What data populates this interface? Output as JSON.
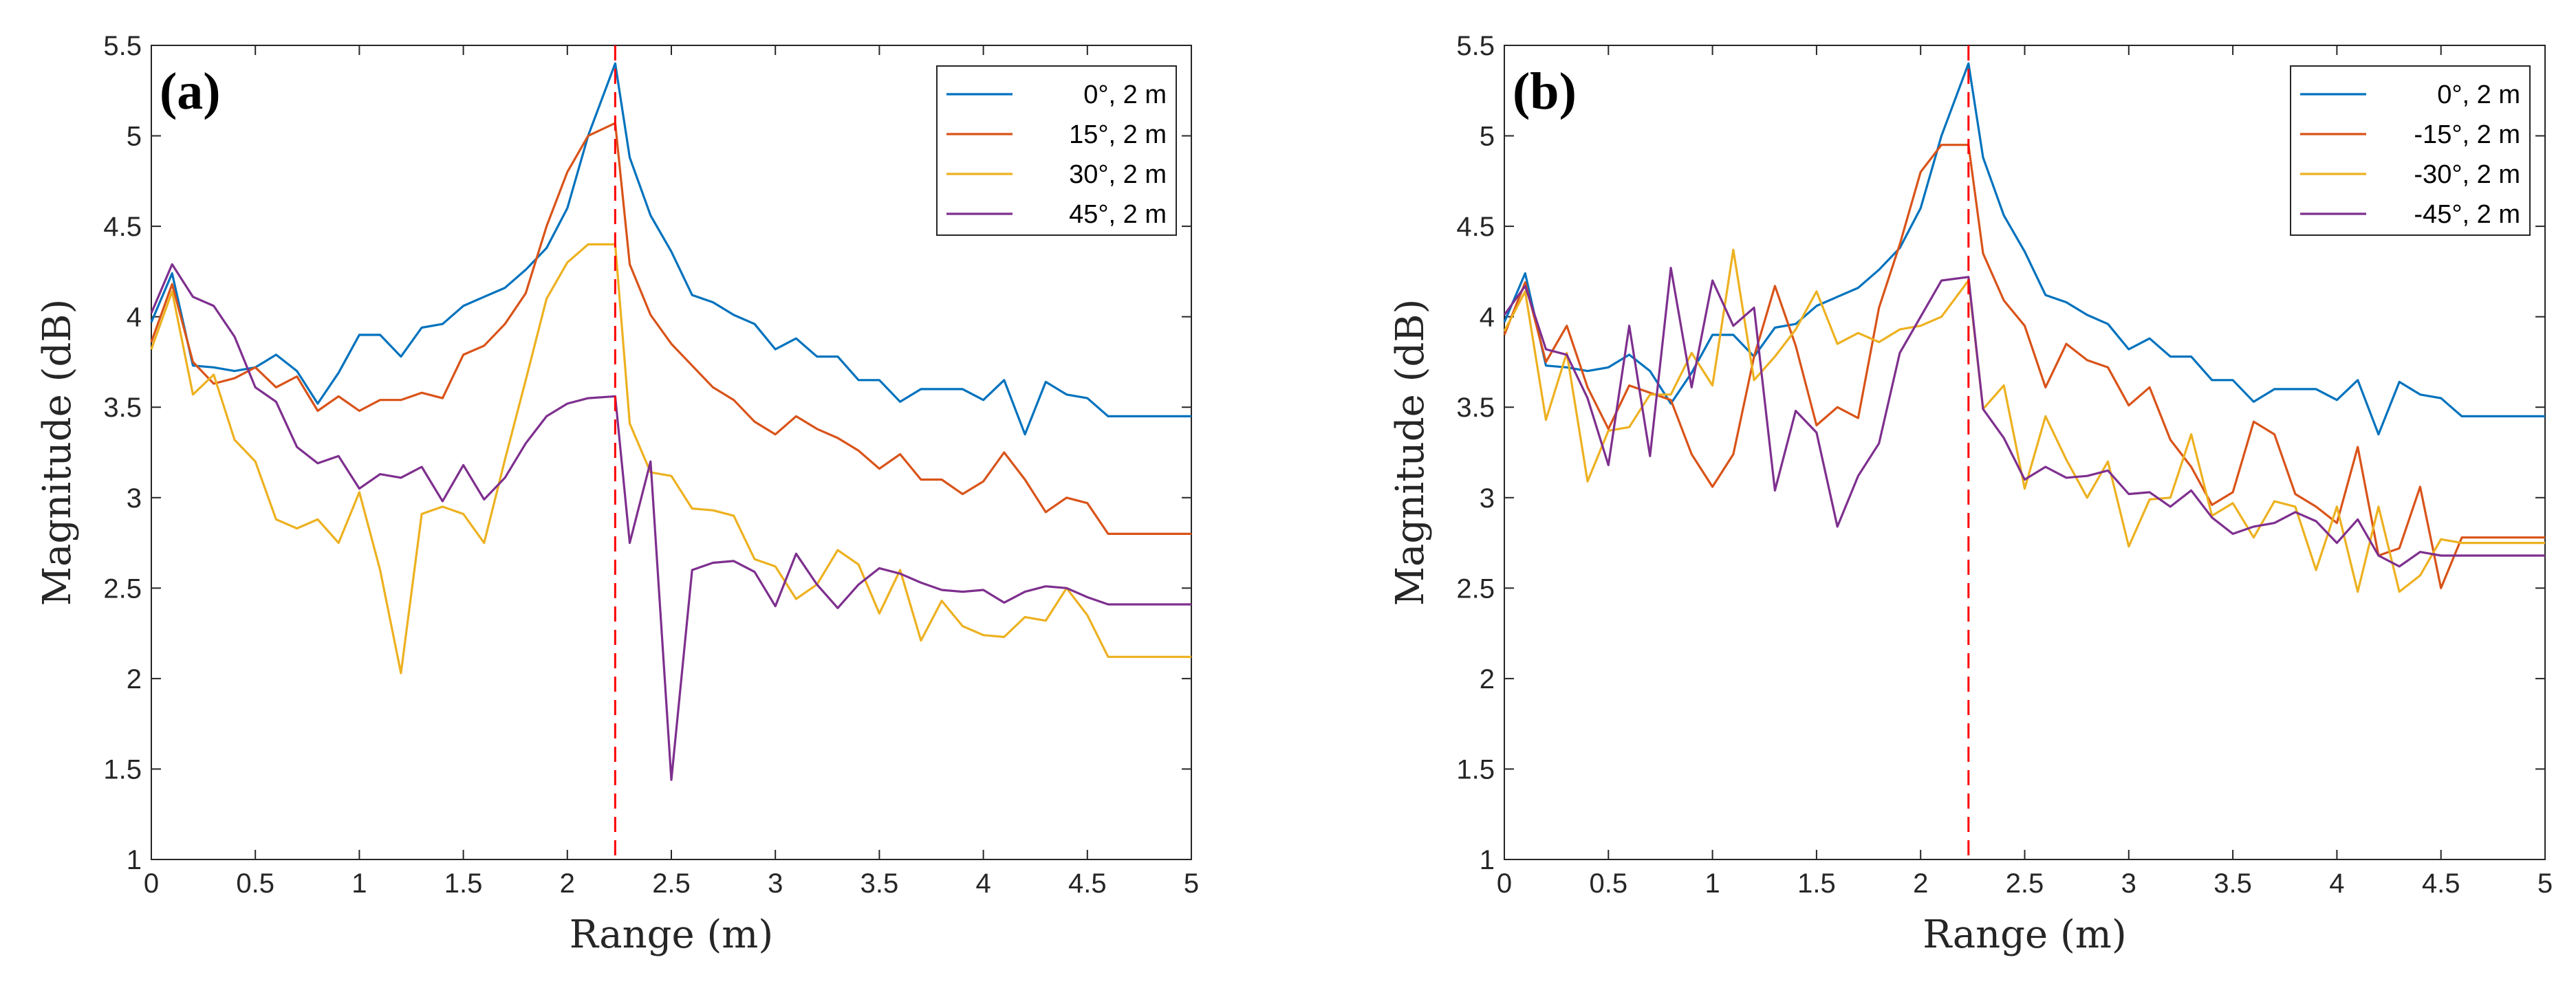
{
  "chart_data": [
    {
      "type": "line",
      "panel_label": "(a)",
      "xlabel": "Range (m)",
      "ylabel": "Magnitude (dB)",
      "xlim": [
        0,
        5
      ],
      "ylim": [
        1,
        5.5
      ],
      "xticks": [
        "0",
        "0.5",
        "1",
        "1.5",
        "2",
        "2.5",
        "3",
        "3.5",
        "4",
        "4.5",
        "5"
      ],
      "yticks": [
        "1",
        "1.5",
        "2",
        "2.5",
        "3",
        "3.5",
        "4",
        "4.5",
        "5",
        "5.5"
      ],
      "grid": false,
      "legend_position": "top-right",
      "vline": {
        "x": 2.23,
        "color": "#ff0000",
        "style": "dashed"
      },
      "x": [
        0,
        0.1,
        0.2,
        0.3,
        0.4,
        0.5,
        0.6,
        0.7,
        0.8,
        0.9,
        1.0,
        1.1,
        1.2,
        1.3,
        1.4,
        1.5,
        1.6,
        1.7,
        1.8,
        1.9,
        2.0,
        2.1,
        2.23,
        2.3,
        2.4,
        2.5,
        2.6,
        2.7,
        2.8,
        2.9,
        3.0,
        3.1,
        3.2,
        3.3,
        3.4,
        3.5,
        3.6,
        3.7,
        3.8,
        3.9,
        4.0,
        4.1,
        4.2,
        4.3,
        4.4,
        4.5,
        4.6,
        4.7,
        4.8,
        4.9,
        5.0
      ],
      "series": [
        {
          "name": "0°, 2 m",
          "color": "#0072bd",
          "values": [
            3.97,
            4.24,
            3.73,
            3.72,
            3.7,
            3.72,
            3.79,
            3.7,
            3.52,
            3.69,
            3.9,
            3.9,
            3.78,
            3.94,
            3.96,
            4.06,
            4.11,
            4.16,
            4.26,
            4.38,
            4.6,
            5.0,
            5.4,
            4.88,
            4.56,
            4.36,
            4.12,
            4.08,
            4.01,
            3.96,
            3.82,
            3.88,
            3.78,
            3.78,
            3.65,
            3.65,
            3.53,
            3.6,
            3.6,
            3.6,
            3.54,
            3.65,
            3.35,
            3.64,
            3.57,
            3.55,
            3.45,
            3.45,
            3.45,
            3.45,
            3.45
          ]
        },
        {
          "name": "15°, 2 m",
          "color": "#d95319",
          "values": [
            3.86,
            4.18,
            3.75,
            3.63,
            3.66,
            3.72,
            3.61,
            3.67,
            3.48,
            3.56,
            3.48,
            3.54,
            3.54,
            3.58,
            3.55,
            3.79,
            3.84,
            3.96,
            4.13,
            4.5,
            4.8,
            5.0,
            5.07,
            4.29,
            4.01,
            3.85,
            3.73,
            3.61,
            3.54,
            3.42,
            3.35,
            3.45,
            3.38,
            3.33,
            3.26,
            3.16,
            3.24,
            3.1,
            3.1,
            3.02,
            3.09,
            3.25,
            3.1,
            2.92,
            3.0,
            2.97,
            2.8,
            2.8,
            2.8,
            2.8,
            2.8
          ]
        },
        {
          "name": "30°, 2 m",
          "color": "#edb120",
          "values": [
            3.82,
            4.14,
            3.57,
            3.68,
            3.32,
            3.2,
            2.88,
            2.83,
            2.88,
            2.75,
            3.03,
            2.6,
            2.03,
            2.91,
            2.95,
            2.91,
            2.75,
            3.21,
            3.65,
            4.1,
            4.3,
            4.4,
            4.4,
            3.41,
            3.14,
            3.12,
            2.94,
            2.93,
            2.9,
            2.66,
            2.62,
            2.44,
            2.52,
            2.71,
            2.63,
            2.36,
            2.6,
            2.21,
            2.43,
            2.29,
            2.24,
            2.23,
            2.34,
            2.32,
            2.5,
            2.35,
            2.12,
            2.12,
            2.12,
            2.12,
            2.12
          ]
        },
        {
          "name": "45°, 2 m",
          "color": "#7e2f8e",
          "values": [
            4.02,
            4.29,
            4.11,
            4.06,
            3.89,
            3.61,
            3.53,
            3.28,
            3.19,
            3.23,
            3.05,
            3.13,
            3.11,
            3.17,
            2.98,
            3.18,
            2.99,
            3.11,
            3.3,
            3.45,
            3.52,
            3.55,
            3.56,
            2.75,
            3.2,
            1.44,
            2.6,
            2.64,
            2.65,
            2.59,
            2.4,
            2.69,
            2.52,
            2.39,
            2.52,
            2.61,
            2.58,
            2.53,
            2.49,
            2.48,
            2.49,
            2.42,
            2.48,
            2.51,
            2.5,
            2.45,
            2.41,
            2.41,
            2.41,
            2.41,
            2.41
          ]
        }
      ]
    },
    {
      "type": "line",
      "panel_label": "(b)",
      "xlabel": "Range (m)",
      "ylabel": "Magnitude (dB)",
      "xlim": [
        0,
        5
      ],
      "ylim": [
        1,
        5.5
      ],
      "xticks": [
        "0",
        "0.5",
        "1",
        "1.5",
        "2",
        "2.5",
        "3",
        "3.5",
        "4",
        "4.5",
        "5"
      ],
      "yticks": [
        "1",
        "1.5",
        "2",
        "2.5",
        "3",
        "3.5",
        "4",
        "4.5",
        "5",
        "5.5"
      ],
      "grid": false,
      "legend_position": "top-right",
      "vline": {
        "x": 2.23,
        "color": "#ff0000",
        "style": "dashed"
      },
      "x": [
        0,
        0.1,
        0.2,
        0.3,
        0.4,
        0.5,
        0.6,
        0.7,
        0.8,
        0.9,
        1.0,
        1.1,
        1.2,
        1.3,
        1.4,
        1.5,
        1.6,
        1.7,
        1.8,
        1.9,
        2.0,
        2.1,
        2.23,
        2.3,
        2.4,
        2.5,
        2.6,
        2.7,
        2.8,
        2.9,
        3.0,
        3.1,
        3.2,
        3.3,
        3.4,
        3.5,
        3.6,
        3.7,
        3.8,
        3.9,
        4.0,
        4.1,
        4.2,
        4.3,
        4.4,
        4.5,
        4.6,
        4.7,
        4.8,
        4.9,
        5.0
      ],
      "series": [
        {
          "name": "0°, 2 m",
          "color": "#0072bd",
          "values": [
            3.97,
            4.24,
            3.73,
            3.72,
            3.7,
            3.72,
            3.79,
            3.7,
            3.52,
            3.69,
            3.9,
            3.9,
            3.78,
            3.94,
            3.96,
            4.06,
            4.11,
            4.16,
            4.26,
            4.38,
            4.6,
            5.0,
            5.4,
            4.88,
            4.56,
            4.36,
            4.12,
            4.08,
            4.01,
            3.96,
            3.82,
            3.88,
            3.78,
            3.78,
            3.65,
            3.65,
            3.53,
            3.6,
            3.6,
            3.6,
            3.54,
            3.65,
            3.35,
            3.64,
            3.57,
            3.55,
            3.45,
            3.45,
            3.45,
            3.45,
            3.45
          ]
        },
        {
          "name": "-15°, 2 m",
          "color": "#d95319",
          "values": [
            3.9,
            4.19,
            3.75,
            3.95,
            3.61,
            3.38,
            3.62,
            3.58,
            3.54,
            3.24,
            3.06,
            3.24,
            3.78,
            4.17,
            3.84,
            3.4,
            3.5,
            3.44,
            4.05,
            4.4,
            4.8,
            4.95,
            4.95,
            4.35,
            4.09,
            3.95,
            3.61,
            3.85,
            3.76,
            3.72,
            3.51,
            3.61,
            3.32,
            3.17,
            2.96,
            3.03,
            3.42,
            3.35,
            3.02,
            2.95,
            2.86,
            3.28,
            2.68,
            2.72,
            3.06,
            2.5,
            2.78,
            2.78,
            2.78,
            2.78,
            2.78
          ]
        },
        {
          "name": "-30°, 2 m",
          "color": "#edb120",
          "values": [
            3.92,
            4.14,
            3.43,
            3.8,
            3.09,
            3.37,
            3.39,
            3.57,
            3.57,
            3.8,
            3.62,
            4.37,
            3.65,
            3.78,
            3.93,
            4.14,
            3.85,
            3.91,
            3.86,
            3.93,
            3.95,
            4.0,
            4.2,
            3.49,
            3.62,
            3.05,
            3.45,
            3.21,
            3.0,
            3.2,
            2.73,
            2.99,
            3.0,
            3.35,
            2.9,
            2.97,
            2.78,
            2.98,
            2.95,
            2.6,
            2.95,
            2.48,
            2.95,
            2.48,
            2.57,
            2.77,
            2.75,
            2.75,
            2.75,
            2.75,
            2.75
          ]
        },
        {
          "name": "-45°, 2 m",
          "color": "#7e2f8e",
          "values": [
            4.01,
            4.17,
            3.82,
            3.79,
            3.55,
            3.18,
            3.95,
            3.23,
            4.27,
            3.61,
            4.2,
            3.95,
            4.05,
            3.04,
            3.48,
            3.36,
            2.84,
            3.12,
            3.3,
            3.8,
            4.0,
            4.2,
            4.22,
            3.49,
            3.33,
            3.1,
            3.17,
            3.11,
            3.12,
            3.15,
            3.02,
            3.03,
            2.95,
            3.04,
            2.89,
            2.8,
            2.84,
            2.86,
            2.92,
            2.87,
            2.75,
            2.88,
            2.68,
            2.62,
            2.7,
            2.68,
            2.68,
            2.68,
            2.68,
            2.68,
            2.68
          ]
        }
      ]
    }
  ]
}
